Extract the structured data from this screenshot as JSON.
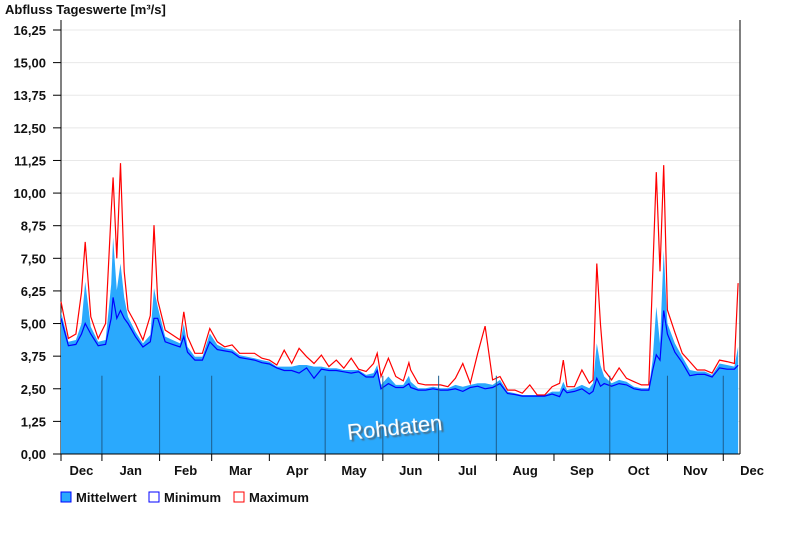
{
  "chart_data": {
    "type": "area",
    "title": "Abfluss Tageswerte [m³/s]",
    "xlabel": "",
    "ylabel": "Abfluss Tageswerte [m³/s]",
    "ylim": [
      0,
      16.25
    ],
    "yticks": [
      "0,00",
      "1,25",
      "2,50",
      "3,75",
      "5,00",
      "6,25",
      "7,50",
      "8,75",
      "10,00",
      "11,25",
      "12,50",
      "13,75",
      "15,00",
      "16,25"
    ],
    "x_unit": "day index from start of plotted period (approx. 10 Dec)",
    "xlim": [
      0,
      365
    ],
    "months": [
      {
        "label": "Dec",
        "start": -9
      },
      {
        "label": "Jan",
        "start": 22
      },
      {
        "label": "Feb",
        "start": 53
      },
      {
        "label": "Mar",
        "start": 81
      },
      {
        "label": "Apr",
        "start": 112
      },
      {
        "label": "May",
        "start": 142
      },
      {
        "label": "Jun",
        "start": 173
      },
      {
        "label": "Jul",
        "start": 203
      },
      {
        "label": "Aug",
        "start": 234
      },
      {
        "label": "Sep",
        "start": 265
      },
      {
        "label": "Oct",
        "start": 295
      },
      {
        "label": "Nov",
        "start": 326
      },
      {
        "label": "Dec",
        "start": 356
      }
    ],
    "grid": true,
    "legend_position": "bottom-left",
    "watermark": "Rohdaten",
    "x": [
      0,
      4,
      8,
      11,
      13,
      16,
      20,
      24,
      27,
      28,
      30,
      32,
      34,
      36,
      40,
      44,
      48,
      50,
      52,
      56,
      60,
      64,
      66,
      68,
      72,
      76,
      80,
      84,
      88,
      92,
      96,
      100,
      104,
      108,
      112,
      116,
      120,
      124,
      128,
      132,
      136,
      140,
      144,
      148,
      152,
      156,
      160,
      164,
      168,
      170,
      172,
      176,
      180,
      184,
      187,
      188,
      192,
      196,
      200,
      204,
      208,
      212,
      216,
      220,
      224,
      228,
      232,
      236,
      240,
      244,
      248,
      252,
      256,
      260,
      264,
      268,
      270,
      272,
      276,
      280,
      284,
      286,
      288,
      290,
      292,
      296,
      300,
      304,
      308,
      312,
      316,
      318,
      320,
      322,
      324,
      326,
      330,
      334,
      338,
      342,
      346,
      350,
      354,
      358,
      362,
      364
    ],
    "series": [
      {
        "name": "Mittelwert",
        "color": "#2aa9fd",
        "style": "area",
        "values": [
          5.45,
          4.3,
          4.37,
          5.0,
          6.6,
          4.88,
          4.3,
          4.37,
          6.5,
          8.3,
          6.28,
          7.3,
          6.0,
          5.26,
          4.69,
          4.24,
          4.56,
          6.36,
          5.64,
          4.5,
          4.37,
          4.24,
          5.0,
          4.11,
          3.73,
          3.73,
          4.62,
          4.18,
          4.05,
          4.01,
          3.79,
          3.73,
          3.67,
          3.6,
          3.54,
          3.35,
          3.35,
          3.35,
          3.41,
          3.41,
          3.35,
          3.35,
          3.29,
          3.29,
          3.22,
          3.22,
          3.22,
          3.03,
          3.1,
          3.41,
          2.65,
          2.97,
          2.65,
          2.65,
          3.0,
          2.77,
          2.52,
          2.52,
          2.58,
          2.52,
          2.52,
          2.65,
          2.58,
          2.65,
          2.71,
          2.71,
          2.65,
          2.84,
          2.39,
          2.33,
          2.26,
          2.26,
          2.26,
          2.26,
          2.39,
          2.39,
          2.77,
          2.45,
          2.52,
          2.65,
          2.52,
          2.71,
          4.24,
          3.4,
          2.97,
          2.71,
          2.84,
          2.77,
          2.58,
          2.52,
          2.52,
          3.6,
          5.64,
          4.24,
          7.8,
          5.0,
          4.24,
          3.73,
          3.22,
          3.16,
          3.16,
          3.03,
          3.47,
          3.41,
          3.35,
          4.11
        ]
      },
      {
        "name": "Minimum",
        "color": "#0000ff",
        "style": "line",
        "values": [
          5.2,
          4.15,
          4.2,
          4.6,
          5.0,
          4.6,
          4.15,
          4.2,
          5.2,
          6.0,
          5.2,
          5.5,
          5.2,
          5.0,
          4.5,
          4.1,
          4.3,
          5.2,
          5.2,
          4.3,
          4.2,
          4.1,
          4.5,
          3.9,
          3.6,
          3.6,
          4.3,
          4.0,
          3.95,
          3.9,
          3.7,
          3.65,
          3.6,
          3.5,
          3.45,
          3.3,
          3.2,
          3.2,
          3.1,
          3.3,
          2.9,
          3.25,
          3.2,
          3.2,
          3.15,
          3.1,
          3.15,
          2.95,
          2.95,
          3.2,
          2.5,
          2.7,
          2.55,
          2.55,
          2.7,
          2.55,
          2.45,
          2.45,
          2.5,
          2.45,
          2.45,
          2.5,
          2.4,
          2.55,
          2.6,
          2.5,
          2.55,
          2.7,
          2.32,
          2.28,
          2.22,
          2.22,
          2.22,
          2.22,
          2.3,
          2.2,
          2.5,
          2.35,
          2.4,
          2.5,
          2.3,
          2.4,
          2.9,
          2.6,
          2.7,
          2.6,
          2.7,
          2.65,
          2.5,
          2.45,
          2.45,
          3.2,
          3.8,
          3.6,
          5.5,
          4.6,
          3.9,
          3.5,
          3.0,
          3.05,
          3.05,
          2.95,
          3.3,
          3.25,
          3.25,
          3.4
        ]
      },
      {
        "name": "Maximum",
        "color": "#ff0000",
        "style": "line",
        "values": [
          5.84,
          4.43,
          4.6,
          6.2,
          8.13,
          5.26,
          4.43,
          5.0,
          9.3,
          10.6,
          7.5,
          11.15,
          7.0,
          5.52,
          5.0,
          4.37,
          5.3,
          8.77,
          5.9,
          4.75,
          4.56,
          4.37,
          5.45,
          4.5,
          3.86,
          3.86,
          4.81,
          4.3,
          4.11,
          4.18,
          3.86,
          3.86,
          3.86,
          3.67,
          3.6,
          3.41,
          3.98,
          3.47,
          4.05,
          3.73,
          3.47,
          3.79,
          3.35,
          3.6,
          3.29,
          3.67,
          3.25,
          3.16,
          3.47,
          3.86,
          2.97,
          3.67,
          2.97,
          2.8,
          3.5,
          3.22,
          2.71,
          2.65,
          2.65,
          2.65,
          2.58,
          2.9,
          3.47,
          2.71,
          3.86,
          4.9,
          2.84,
          2.97,
          2.45,
          2.45,
          2.33,
          2.65,
          2.26,
          2.26,
          2.58,
          2.71,
          3.6,
          2.58,
          2.58,
          3.22,
          2.71,
          2.84,
          7.3,
          4.96,
          3.22,
          2.84,
          3.3,
          2.9,
          2.77,
          2.65,
          2.65,
          6.8,
          10.8,
          7.0,
          11.07,
          5.52,
          4.66,
          3.86,
          3.54,
          3.22,
          3.22,
          3.1,
          3.6,
          3.54,
          3.47,
          6.55
        ]
      }
    ]
  }
}
